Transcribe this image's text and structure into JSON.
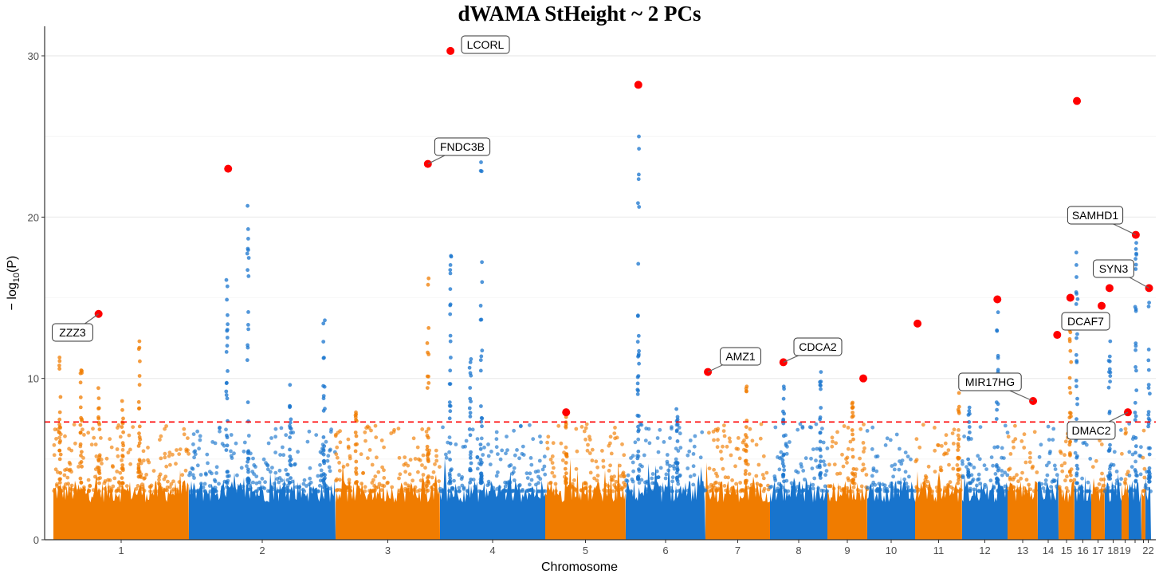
{
  "chart_data": {
    "type": "scatter",
    "subtype": "manhattan",
    "title": "dWAMA StHeight ~ 2 PCs",
    "xlabel": "Chromosome",
    "ylabel": "− log10(P)",
    "ylabel_parts": {
      "prefix": "− log",
      "sub": "10",
      "suffix": "(P)"
    },
    "ylim": [
      0,
      32
    ],
    "yticks": [
      0,
      10,
      20,
      30
    ],
    "grid": true,
    "significance_threshold": 7.3,
    "threshold_color": "#FF0000",
    "colors": {
      "odd_chromosomes": "#F07C00",
      "even_chromosomes": "#1874CD",
      "lead_snps": "#FF0000"
    },
    "chromosomes": [
      "1",
      "2",
      "3",
      "4",
      "5",
      "6",
      "7",
      "8",
      "9",
      "10",
      "11",
      "12",
      "13",
      "14",
      "15",
      "16",
      "17",
      "18",
      "19",
      "20",
      "21",
      "22"
    ],
    "xtick_labels": [
      "1",
      "2",
      "3",
      "4",
      "5",
      "6",
      "7",
      "8",
      "9",
      "10",
      "11",
      "12",
      "13",
      "14",
      "15",
      "16",
      "17",
      "18",
      "19",
      "",
      "",
      "22"
    ],
    "lead_snps": [
      {
        "chr": 1,
        "pos_mb": 83,
        "logp": 14.0,
        "gene": "ZZZ3"
      },
      {
        "chr": 2,
        "pos_mb": 65,
        "logp": 23.0,
        "gene": ""
      },
      {
        "chr": 3,
        "pos_mb": 175,
        "logp": 23.3,
        "gene": "FNDC3B"
      },
      {
        "chr": 4,
        "pos_mb": 19,
        "logp": 30.3,
        "gene": "LCORL"
      },
      {
        "chr": 5,
        "pos_mb": 47,
        "logp": 7.9,
        "gene": ""
      },
      {
        "chr": 6,
        "pos_mb": 27,
        "logp": 28.2,
        "gene": ""
      },
      {
        "chr": 7,
        "pos_mb": 6,
        "logp": 10.4,
        "gene": "AMZ1"
      },
      {
        "chr": 8,
        "pos_mb": 34,
        "logp": 11.0,
        "gene": "CDCA2"
      },
      {
        "chr": 9,
        "pos_mb": 127,
        "logp": 10.0,
        "gene": ""
      },
      {
        "chr": 11,
        "pos_mb": 7,
        "logp": 13.4,
        "gene": ""
      },
      {
        "chr": 12,
        "pos_mb": 104,
        "logp": 14.9,
        "gene": ""
      },
      {
        "chr": 13,
        "pos_mb": 97,
        "logp": 8.6,
        "gene": "MIR17HG"
      },
      {
        "chr": 14,
        "pos_mb": 100,
        "logp": 12.7,
        "gene": ""
      },
      {
        "chr": 15,
        "pos_mb": 76,
        "logp": 15.0,
        "gene": ""
      },
      {
        "chr": 16,
        "pos_mb": 13,
        "logp": 27.2,
        "gene": ""
      },
      {
        "chr": 17,
        "pos_mb": 62,
        "logp": 14.5,
        "gene": "DCAF7"
      },
      {
        "chr": 18,
        "pos_mb": 22,
        "logp": 15.6,
        "gene": ""
      },
      {
        "chr": 19,
        "pos_mb": 52,
        "logp": 7.9,
        "gene": "DMAC2"
      },
      {
        "chr": 20,
        "pos_mb": 35,
        "logp": 18.9,
        "gene": "SAMHD1"
      },
      {
        "chr": 22,
        "pos_mb": 33,
        "logp": 15.6,
        "gene": "SYN3"
      }
    ],
    "peaks": [
      {
        "chr": 1,
        "pos_mb": 12,
        "logp": 11.3
      },
      {
        "chr": 1,
        "pos_mb": 51,
        "logp": 10.5
      },
      {
        "chr": 1,
        "pos_mb": 84,
        "logp": 9.4
      },
      {
        "chr": 1,
        "pos_mb": 158,
        "logp": 12.3
      },
      {
        "chr": 1,
        "pos_mb": 127,
        "logp": 8.6
      },
      {
        "chr": 2,
        "pos_mb": 98,
        "logp": 20.7
      },
      {
        "chr": 2,
        "pos_mb": 63,
        "logp": 16.1
      },
      {
        "chr": 2,
        "pos_mb": 224,
        "logp": 13.6
      },
      {
        "chr": 2,
        "pos_mb": 168,
        "logp": 9.6
      },
      {
        "chr": 3,
        "pos_mb": 175,
        "logp": 16.2
      },
      {
        "chr": 3,
        "pos_mb": 39,
        "logp": 7.9
      },
      {
        "chr": 4,
        "pos_mb": 19,
        "logp": 17.6
      },
      {
        "chr": 4,
        "pos_mb": 75,
        "logp": 23.4
      },
      {
        "chr": 4,
        "pos_mb": 55,
        "logp": 11.2
      },
      {
        "chr": 5,
        "pos_mb": 47,
        "logp": 7.6
      },
      {
        "chr": 6,
        "pos_mb": 27,
        "logp": 25.0
      },
      {
        "chr": 6,
        "pos_mb": 110,
        "logp": 8.1
      },
      {
        "chr": 7,
        "pos_mb": 100,
        "logp": 9.5
      },
      {
        "chr": 8,
        "pos_mb": 128,
        "logp": 10.4
      },
      {
        "chr": 8,
        "pos_mb": 34,
        "logp": 9.5
      },
      {
        "chr": 9,
        "pos_mb": 90,
        "logp": 8.5
      },
      {
        "chr": 11,
        "pos_mb": 125,
        "logp": 9.1
      },
      {
        "chr": 12,
        "pos_mb": 104,
        "logp": 14.1
      },
      {
        "chr": 12,
        "pos_mb": 20,
        "logp": 8.2
      },
      {
        "chr": 15,
        "pos_mb": 76,
        "logp": 13.0
      },
      {
        "chr": 16,
        "pos_mb": 13,
        "logp": 17.8
      },
      {
        "chr": 18,
        "pos_mb": 22,
        "logp": 12.3
      },
      {
        "chr": 20,
        "pos_mb": 35,
        "logp": 18.4
      },
      {
        "chr": 22,
        "pos_mb": 33,
        "logp": 14.7
      }
    ]
  }
}
